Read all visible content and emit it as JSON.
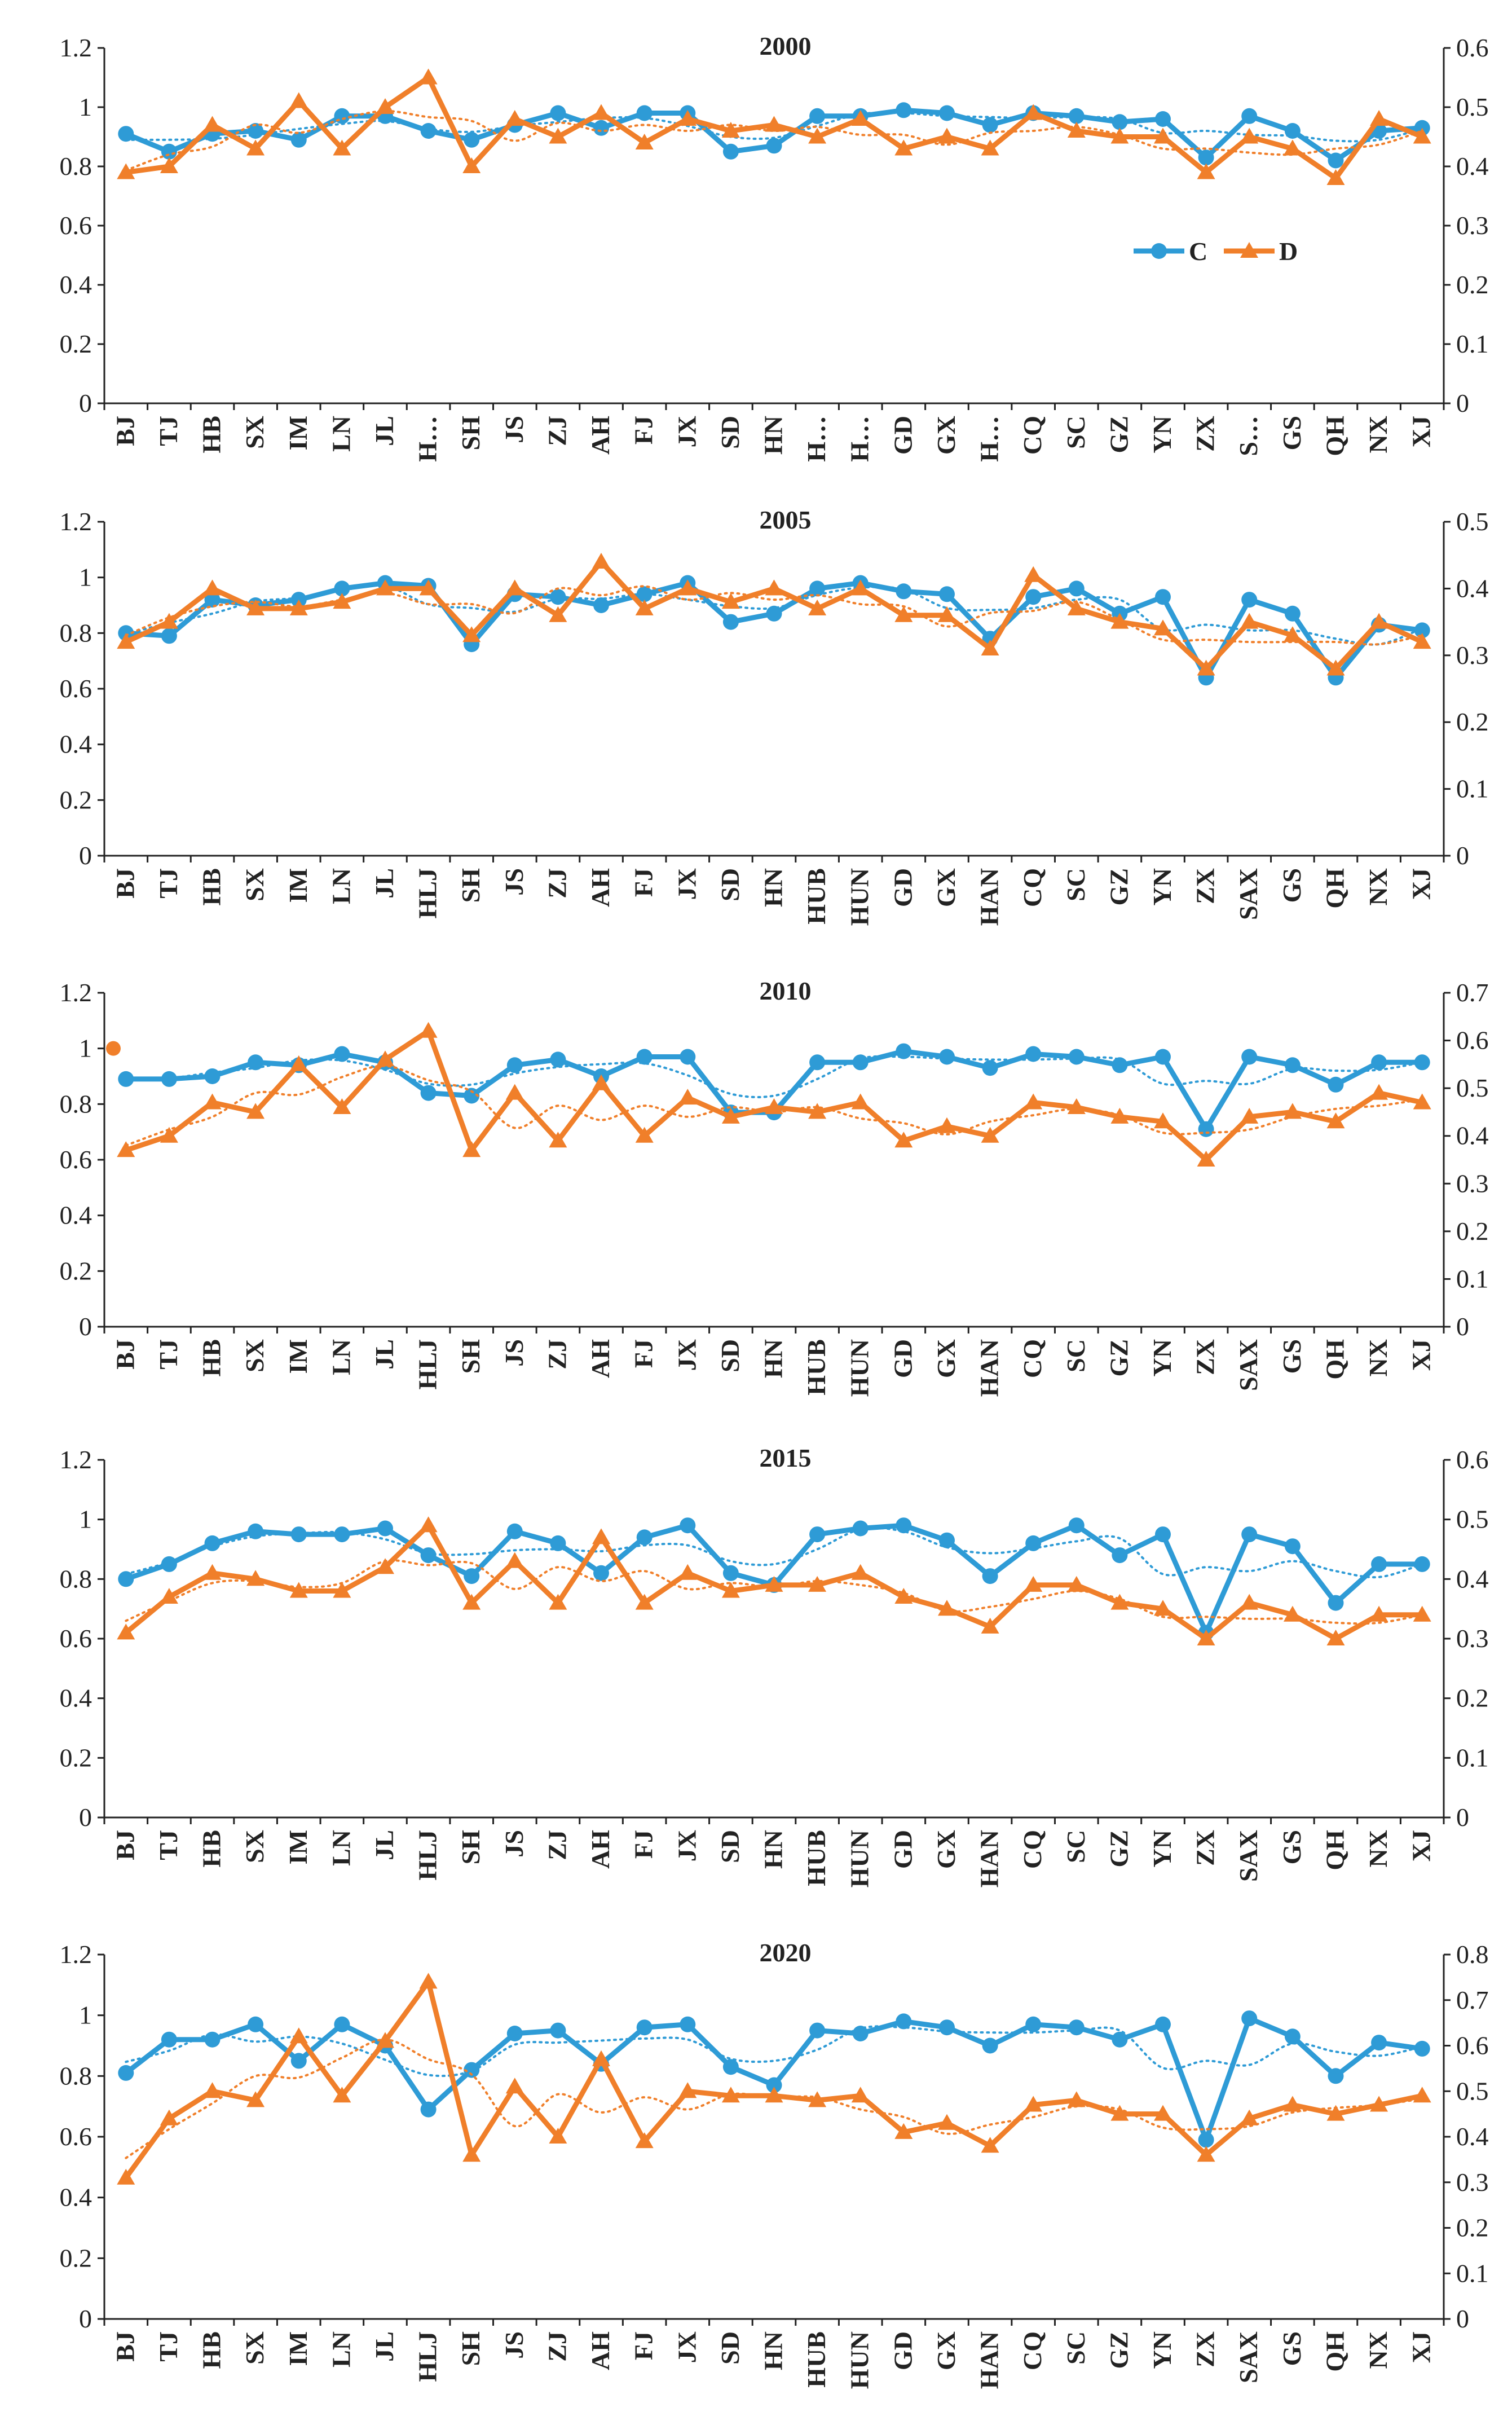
{
  "colors": {
    "C": "#2e9bd6",
    "D": "#f07f2a",
    "axis": "#222222"
  },
  "categories": [
    "BJ",
    "TJ",
    "HB",
    "SX",
    "IM",
    "LN",
    "JL",
    "HLJ",
    "SH",
    "JS",
    "ZJ",
    "AH",
    "FJ",
    "JX",
    "SD",
    "HN",
    "HUB",
    "HUN",
    "GD",
    "GX",
    "HAN",
    "CQ",
    "SC",
    "GZ",
    "YN",
    "ZX",
    "SAX",
    "GS",
    "QH",
    "NX",
    "XJ"
  ],
  "categories_2000": [
    "BJ",
    "TJ",
    "HB",
    "SX",
    "IM",
    "LN",
    "JL",
    "H…",
    "SH",
    "JS",
    "ZJ",
    "AH",
    "FJ",
    "JX",
    "SD",
    "HN",
    "H…",
    "H…",
    "GD",
    "GX",
    "H…",
    "CQ",
    "SC",
    "GZ",
    "YN",
    "ZX",
    "S…",
    "GS",
    "QH",
    "NX",
    "XJ"
  ],
  "chart_data": [
    {
      "type": "line",
      "title": "2000",
      "ylim": [
        0,
        1.2
      ],
      "y_ticks": [
        "0",
        "0.2",
        "0.4",
        "0.6",
        "0.8",
        "1",
        "1.2"
      ],
      "y2lim": [
        0,
        0.6
      ],
      "y2_ticks": [
        "0",
        "0.1",
        "0.2",
        "0.3",
        "0.4",
        "0.5",
        "0.6"
      ],
      "legend": {
        "position": "right",
        "labels": [
          "C",
          "D"
        ]
      },
      "series": [
        {
          "name": "C",
          "axis": "left",
          "values": [
            0.91,
            0.85,
            0.91,
            0.92,
            0.89,
            0.97,
            0.97,
            0.92,
            0.89,
            0.94,
            0.98,
            0.93,
            0.98,
            0.98,
            0.85,
            0.87,
            0.97,
            0.97,
            0.99,
            0.98,
            0.94,
            0.98,
            0.97,
            0.95,
            0.96,
            0.83,
            0.97,
            0.92,
            0.82,
            0.92,
            0.93
          ]
        },
        {
          "name": "D",
          "axis": "right",
          "values": [
            0.39,
            0.4,
            0.47,
            0.43,
            0.51,
            0.43,
            0.5,
            0.55,
            0.4,
            0.48,
            0.45,
            0.49,
            0.44,
            0.48,
            0.46,
            0.47,
            0.45,
            0.48,
            0.43,
            0.45,
            0.43,
            0.49,
            0.46,
            0.45,
            0.45,
            0.39,
            0.45,
            0.43,
            0.38,
            0.48,
            0.45
          ]
        }
      ]
    },
    {
      "type": "line",
      "title": "2005",
      "ylim": [
        0,
        1.2
      ],
      "y_ticks": [
        "0",
        "0.2",
        "0.4",
        "0.6",
        "0.8",
        "1",
        "1.2"
      ],
      "y2lim": [
        0,
        0.5
      ],
      "y2_ticks": [
        "0",
        "0.1",
        "0.2",
        "0.3",
        "0.4",
        "0.5"
      ],
      "series": [
        {
          "name": "C",
          "axis": "left",
          "values": [
            0.8,
            0.79,
            0.92,
            0.9,
            0.92,
            0.96,
            0.98,
            0.97,
            0.76,
            0.94,
            0.93,
            0.9,
            0.94,
            0.98,
            0.84,
            0.87,
            0.96,
            0.98,
            0.95,
            0.94,
            0.78,
            0.93,
            0.96,
            0.87,
            0.93,
            0.64,
            0.92,
            0.87,
            0.64,
            0.83,
            0.81
          ]
        },
        {
          "name": "D",
          "axis": "right",
          "values": [
            0.32,
            0.35,
            0.4,
            0.37,
            0.37,
            0.38,
            0.4,
            0.4,
            0.33,
            0.4,
            0.36,
            0.44,
            0.37,
            0.4,
            0.38,
            0.4,
            0.37,
            0.4,
            0.36,
            0.36,
            0.31,
            0.42,
            0.37,
            0.35,
            0.34,
            0.28,
            0.35,
            0.33,
            0.28,
            0.35,
            0.32
          ]
        }
      ]
    },
    {
      "type": "line",
      "title": "2010",
      "ylim": [
        0,
        1.2
      ],
      "y_ticks": [
        "0",
        "0.2",
        "0.4",
        "0.6",
        "0.8",
        "1",
        "1.2"
      ],
      "y2lim": [
        0,
        0.7
      ],
      "y2_ticks": [
        "0",
        "0.1",
        "0.2",
        "0.3",
        "0.4",
        "0.5",
        "0.6",
        "0.7"
      ],
      "series": [
        {
          "name": "C",
          "axis": "left",
          "values": [
            0.89,
            0.89,
            0.9,
            0.95,
            0.94,
            0.98,
            0.95,
            0.84,
            0.83,
            0.94,
            0.96,
            0.9,
            0.97,
            0.97,
            0.77,
            0.77,
            0.95,
            0.95,
            0.99,
            0.97,
            0.93,
            0.98,
            0.97,
            0.94,
            0.97,
            0.71,
            0.97,
            0.94,
            0.87,
            0.95,
            0.95
          ]
        },
        {
          "name": "D",
          "axis": "right",
          "values": [
            0.37,
            0.4,
            0.47,
            0.45,
            0.55,
            0.46,
            0.56,
            0.62,
            0.37,
            0.49,
            0.39,
            0.51,
            0.4,
            0.48,
            0.44,
            0.46,
            0.45,
            0.47,
            0.39,
            0.42,
            0.4,
            0.47,
            0.46,
            0.44,
            0.43,
            0.35,
            0.44,
            0.45,
            0.43,
            0.49,
            0.47
          ]
        }
      ]
    },
    {
      "type": "line",
      "title": "2015",
      "ylim": [
        0,
        1.2
      ],
      "y_ticks": [
        "0",
        "0.2",
        "0.4",
        "0.6",
        "0.8",
        "1",
        "1.2"
      ],
      "y2lim": [
        0,
        0.6
      ],
      "y2_ticks": [
        "0",
        "0.1",
        "0.2",
        "0.3",
        "0.4",
        "0.5",
        "0.6"
      ],
      "series": [
        {
          "name": "C",
          "axis": "left",
          "values": [
            0.8,
            0.85,
            0.92,
            0.96,
            0.95,
            0.95,
            0.97,
            0.88,
            0.81,
            0.96,
            0.92,
            0.82,
            0.94,
            0.98,
            0.82,
            0.78,
            0.95,
            0.97,
            0.98,
            0.93,
            0.81,
            0.92,
            0.98,
            0.88,
            0.95,
            0.62,
            0.95,
            0.91,
            0.72,
            0.85,
            0.85
          ]
        },
        {
          "name": "D",
          "axis": "right",
          "values": [
            0.31,
            0.37,
            0.41,
            0.4,
            0.38,
            0.38,
            0.42,
            0.49,
            0.36,
            0.43,
            0.36,
            0.47,
            0.36,
            0.41,
            0.38,
            0.39,
            0.39,
            0.41,
            0.37,
            0.35,
            0.32,
            0.39,
            0.39,
            0.36,
            0.35,
            0.3,
            0.36,
            0.34,
            0.3,
            0.34,
            0.34
          ]
        }
      ]
    },
    {
      "type": "line",
      "title": "2020",
      "ylim": [
        0,
        1.2
      ],
      "y_ticks": [
        "0",
        "0.2",
        "0.4",
        "0.6",
        "0.8",
        "1",
        "1.2"
      ],
      "y2lim": [
        0,
        0.8
      ],
      "y2_ticks": [
        "0",
        "0.1",
        "0.2",
        "0.3",
        "0.4",
        "0.5",
        "0.6",
        "0.7",
        "0.8"
      ],
      "series": [
        {
          "name": "C",
          "axis": "left",
          "values": [
            0.81,
            0.92,
            0.92,
            0.97,
            0.85,
            0.97,
            0.9,
            0.69,
            0.82,
            0.94,
            0.95,
            0.84,
            0.96,
            0.97,
            0.83,
            0.77,
            0.95,
            0.94,
            0.98,
            0.96,
            0.9,
            0.97,
            0.96,
            0.92,
            0.97,
            0.59,
            0.99,
            0.93,
            0.8,
            0.91,
            0.89
          ]
        },
        {
          "name": "D",
          "axis": "right",
          "values": [
            0.31,
            0.44,
            0.5,
            0.48,
            0.62,
            0.49,
            0.61,
            0.74,
            0.36,
            0.51,
            0.4,
            0.57,
            0.39,
            0.5,
            0.49,
            0.49,
            0.48,
            0.49,
            0.41,
            0.43,
            0.38,
            0.47,
            0.48,
            0.45,
            0.45,
            0.36,
            0.44,
            0.47,
            0.45,
            0.47,
            0.49
          ]
        }
      ]
    }
  ]
}
